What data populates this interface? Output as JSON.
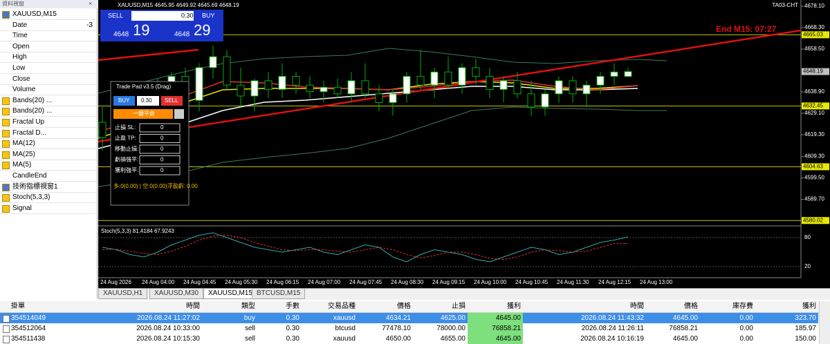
{
  "data_window": {
    "title": "資料視窗",
    "symbol": "XAUUSD,M15",
    "fields": [
      {
        "label": "Date",
        "value": "-3"
      },
      {
        "label": "Time"
      },
      {
        "label": "Open"
      },
      {
        "label": "High"
      },
      {
        "label": "Low"
      },
      {
        "label": "Close"
      },
      {
        "label": "Volume"
      }
    ],
    "indicators": [
      "Bands(20) ...",
      "Bands(20) ...",
      "Fractal Up",
      "Fractal D...",
      "MA(12)",
      "MA(25)",
      "MA(5)",
      "CandleEnd"
    ],
    "subwindow": "技術指標視窗1",
    "sub_indicators": [
      "Stoch(5,3,3)",
      "Signal"
    ]
  },
  "chart": {
    "header": "XAUUSD,M15  4645.95 4649.92 4645.69 4648.19",
    "brand": "TA03-CHT",
    "countdown": "End M15: 07:27",
    "quick_trade": {
      "sell": "SELL",
      "buy": "BUY",
      "lots": "0.30",
      "bid_big": "4648",
      "bid_small": "19",
      "ask_big": "4648",
      "ask_small": "29"
    },
    "ylim": [
      4576.8,
      4680.9
    ],
    "yticks": [
      {
        "value": 4678.1,
        "label": "4678.10"
      },
      {
        "value": 4668.3,
        "label": "4668.30"
      },
      {
        "value": 4658.5,
        "label": "4658.50"
      },
      {
        "value": 4638.9,
        "label": "4638.90"
      },
      {
        "value": 4629.1,
        "label": "4629.10"
      },
      {
        "value": 4619.3,
        "label": "4619.30"
      },
      {
        "value": 4609.3,
        "label": "4609.30"
      },
      {
        "value": 4599.5,
        "label": "4599.50"
      },
      {
        "value": 4589.7,
        "label": "4589.70"
      }
    ],
    "levels": [
      4665.03,
      4632.45,
      4604.63,
      4580.02
    ],
    "current_price": 4648.19,
    "time_labels": [
      "24 Aug 2026",
      "24 Aug 04:00",
      "24 Aug 04:45",
      "24 Aug 05:30",
      "24 Aug 06:15",
      "24 Aug 07:00",
      "24 Aug 07:45",
      "24 Aug 08:30",
      "24 Aug 09:15",
      "24 Aug 10:00",
      "24 Aug 10:45",
      "24 Aug 11:30",
      "24 Aug 12:15",
      "24 Aug 13:00"
    ],
    "candles": [
      {
        "open": 4625,
        "high": 4632,
        "low": 4612,
        "close": 4618
      },
      {
        "open": 4618,
        "high": 4628,
        "low": 4608,
        "close": 4626
      },
      {
        "open": 4626,
        "high": 4634,
        "low": 4620,
        "close": 4630
      },
      {
        "open": 4630,
        "high": 4640,
        "low": 4626,
        "close": 4638
      },
      {
        "open": 4638,
        "high": 4645,
        "low": 4634,
        "close": 4636
      },
      {
        "open": 4636,
        "high": 4648,
        "low": 4632,
        "close": 4646
      },
      {
        "open": 4646,
        "high": 4650,
        "low": 4630,
        "close": 4635
      },
      {
        "open": 4635,
        "high": 4652,
        "low": 4630,
        "close": 4650
      },
      {
        "open": 4650,
        "high": 4660,
        "low": 4645,
        "close": 4655
      },
      {
        "open": 4655,
        "high": 4658,
        "low": 4640,
        "close": 4642
      },
      {
        "open": 4642,
        "high": 4650,
        "low": 4632,
        "close": 4637
      },
      {
        "open": 4637,
        "high": 4645,
        "low": 4630,
        "close": 4644
      },
      {
        "open": 4644,
        "high": 4648,
        "low": 4636,
        "close": 4640
      },
      {
        "open": 4640,
        "high": 4652,
        "low": 4636,
        "close": 4646
      },
      {
        "open": 4646,
        "high": 4648,
        "low": 4638,
        "close": 4642
      },
      {
        "open": 4642,
        "high": 4646,
        "low": 4636,
        "close": 4639
      },
      {
        "open": 4639,
        "high": 4644,
        "low": 4634,
        "close": 4641
      },
      {
        "open": 4641,
        "high": 4645,
        "low": 4636,
        "close": 4638
      },
      {
        "open": 4638,
        "high": 4648,
        "low": 4634,
        "close": 4644
      },
      {
        "open": 4644,
        "high": 4652,
        "low": 4636,
        "close": 4638
      },
      {
        "open": 4638,
        "high": 4642,
        "low": 4630,
        "close": 4634
      },
      {
        "open": 4634,
        "high": 4640,
        "low": 4628,
        "close": 4638
      },
      {
        "open": 4638,
        "high": 4648,
        "low": 4634,
        "close": 4646
      },
      {
        "open": 4646,
        "high": 4658,
        "low": 4640,
        "close": 4642
      },
      {
        "open": 4642,
        "high": 4650,
        "low": 4636,
        "close": 4648
      },
      {
        "open": 4648,
        "high": 4655,
        "low": 4640,
        "close": 4642
      },
      {
        "open": 4642,
        "high": 4652,
        "low": 4638,
        "close": 4650
      },
      {
        "open": 4650,
        "high": 4654,
        "low": 4642,
        "close": 4646
      },
      {
        "open": 4646,
        "high": 4650,
        "low": 4636,
        "close": 4640
      },
      {
        "open": 4640,
        "high": 4646,
        "low": 4634,
        "close": 4644
      },
      {
        "open": 4644,
        "high": 4648,
        "low": 4636,
        "close": 4638
      },
      {
        "open": 4638,
        "high": 4644,
        "low": 4628,
        "close": 4632
      },
      {
        "open": 4632,
        "high": 4640,
        "low": 4628,
        "close": 4638
      },
      {
        "open": 4638,
        "high": 4646,
        "low": 4634,
        "close": 4644
      },
      {
        "open": 4644,
        "high": 4646,
        "low": 4634,
        "close": 4638
      },
      {
        "open": 4638,
        "high": 4644,
        "low": 4632,
        "close": 4642
      },
      {
        "open": 4642,
        "high": 4648,
        "low": 4638,
        "close": 4646
      },
      {
        "open": 4646,
        "high": 4652,
        "low": 4642,
        "close": 4648
      },
      {
        "open": 4645.95,
        "high": 4649.92,
        "low": 4645.69,
        "close": 4648.19
      }
    ],
    "stoch": {
      "label": "Stoch(5,3,3) 81.4184 67.9243",
      "ylim": [
        0,
        100
      ],
      "yticks": [
        80,
        20
      ],
      "main": [
        60,
        55,
        45,
        40,
        50,
        65,
        75,
        85,
        90,
        80,
        70,
        60,
        55,
        50,
        55,
        60,
        50,
        45,
        55,
        65,
        60,
        40,
        30,
        45,
        55,
        50,
        45,
        35,
        30,
        40,
        50,
        60,
        55,
        45,
        50,
        60,
        70,
        75,
        81.4184
      ],
      "signal": [
        55,
        56,
        52,
        47,
        45,
        52,
        62,
        75,
        83,
        85,
        80,
        70,
        62,
        55,
        53,
        55,
        55,
        52,
        50,
        55,
        60,
        55,
        45,
        38,
        43,
        50,
        50,
        45,
        37,
        35,
        40,
        50,
        55,
        53,
        50,
        52,
        60,
        68,
        67.9243
      ]
    }
  },
  "trade_pad": {
    "title": "Trade Pad v3.5 (Drag)",
    "buy": "BUY",
    "lots": "0.30",
    "sell": "SELL",
    "close_all": "一鍵平倉",
    "fields": [
      {
        "label": "止損 SL:",
        "value": "0"
      },
      {
        "label": "止盈 TP:",
        "value": "0"
      },
      {
        "label": "移動止損:",
        "value": "0"
      },
      {
        "label": "虧損強平:",
        "value": "0"
      },
      {
        "label": "獲利強平:",
        "value": "0"
      }
    ],
    "summary": "多:0(0.00) | 空:0(0.00)浮盈虧: 0.00"
  },
  "tabs": [
    "XAUUSD,H1",
    "XAUUSD,M30",
    "XAUUSD,M15",
    "BTCUSD,M15"
  ],
  "orders": {
    "headers": [
      "掛單",
      "時間",
      "類型",
      "手數",
      "交易品種",
      "價格",
      "止損",
      "獲利",
      "時間",
      "價格",
      "庫存費",
      "獲利"
    ],
    "rows": [
      [
        "354514049",
        "2026.08.24 11:27:02",
        "buy",
        "0.30",
        "xauusd",
        "4634.21",
        "4625.00",
        "4645.00",
        "2026.08.24 11:43:32",
        "4645.00",
        "0.00",
        "323.70"
      ],
      [
        "354512064",
        "2026.08.24 10:33:00",
        "sell",
        "0.30",
        "btcusd",
        "77478.10",
        "78000.00",
        "76858.21",
        "2026.08.24 11:26:11",
        "76858.21",
        "0.00",
        "185.97"
      ],
      [
        "354511438",
        "2026.08.24 10:15:30",
        "sell",
        "0.30",
        "xauusd",
        "4650.00",
        "4655.00",
        "4645.00",
        "2026.08.24 10:16:19",
        "4645.00",
        "0.00",
        "150.00"
      ]
    ]
  }
}
